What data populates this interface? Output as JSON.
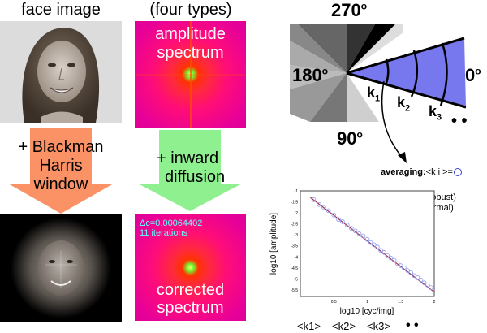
{
  "col1_title": "face image",
  "col2_title": "(four types)",
  "amp_line1": "amplitude",
  "amp_line2": "spectrum",
  "arrow1_label": [
    "+ Blackman",
    "Harris",
    "window"
  ],
  "arrow2_label": [
    "+ inward",
    "diffusion"
  ],
  "delta_c": "Δc=0.00064402",
  "iterations": "11 iterations",
  "corr_line1": "corrected",
  "corr_line2": "spectrum",
  "angles": {
    "a270": "270",
    "a180": "180",
    "a0": "0",
    "a90": "90",
    "deg": "o"
  },
  "k_labels": [
    "k",
    "k",
    "k"
  ],
  "k_subs": [
    "1",
    "2",
    "3"
  ],
  "dots": "• •",
  "averaging_bold": "averaging:",
  "averaging_rest": "<k i >=",
  "method1": "(i) median (robust)",
  "method2": "(ii) mean (normal)",
  "ylabel": "log10 [amplitude]",
  "xlabel": "log10 [cyc/img]",
  "bottom_labels": [
    "<k1>",
    "<k2>",
    "<k3>"
  ],
  "colors": {
    "arrow1": "#fa9266",
    "arrow2": "#8ef08e",
    "wedge": "#7777ee",
    "fit": "#a03050",
    "points": "#8899ee"
  },
  "chart_data": {
    "type": "scatter",
    "xlabel": "log10 [cyc/img]",
    "ylabel": "log10 [amplitude]",
    "xlim": [
      0,
      2
    ],
    "ylim": [
      -5.8,
      -1
    ],
    "x_ticks": [
      "0.5",
      "1",
      "1.5",
      "2"
    ],
    "y_ticks": [
      "-1",
      "-1.5",
      "-2",
      "-2.5",
      "-3",
      "-3.5",
      "-4",
      "-4.5",
      "-5",
      "-5.5"
    ],
    "fit_line": {
      "x": [
        0.15,
        2.0
      ],
      "y": [
        -1.3,
        -5.6
      ]
    },
    "points": [
      {
        "x": 0.2,
        "y": -1.4
      },
      {
        "x": 0.28,
        "y": -1.62
      },
      {
        "x": 0.35,
        "y": -1.75
      },
      {
        "x": 0.42,
        "y": -1.9
      },
      {
        "x": 0.5,
        "y": -2.1
      },
      {
        "x": 0.57,
        "y": -2.3
      },
      {
        "x": 0.63,
        "y": -2.4
      },
      {
        "x": 0.7,
        "y": -2.55
      },
      {
        "x": 0.76,
        "y": -2.7
      },
      {
        "x": 0.82,
        "y": -2.82
      },
      {
        "x": 0.88,
        "y": -2.95
      },
      {
        "x": 0.94,
        "y": -3.05
      },
      {
        "x": 1.0,
        "y": -3.2
      },
      {
        "x": 1.05,
        "y": -3.35
      },
      {
        "x": 1.1,
        "y": -3.45
      },
      {
        "x": 1.15,
        "y": -3.55
      },
      {
        "x": 1.2,
        "y": -3.7
      },
      {
        "x": 1.25,
        "y": -3.8
      },
      {
        "x": 1.3,
        "y": -3.95
      },
      {
        "x": 1.35,
        "y": -4.05
      },
      {
        "x": 1.4,
        "y": -4.15
      },
      {
        "x": 1.45,
        "y": -4.3
      },
      {
        "x": 1.5,
        "y": -4.4
      },
      {
        "x": 1.55,
        "y": -4.5
      },
      {
        "x": 1.6,
        "y": -4.62
      },
      {
        "x": 1.65,
        "y": -4.72
      },
      {
        "x": 1.7,
        "y": -4.85
      },
      {
        "x": 1.75,
        "y": -4.95
      },
      {
        "x": 1.8,
        "y": -5.05
      },
      {
        "x": 1.85,
        "y": -5.18
      },
      {
        "x": 1.9,
        "y": -5.28
      },
      {
        "x": 1.95,
        "y": -5.4
      }
    ]
  }
}
